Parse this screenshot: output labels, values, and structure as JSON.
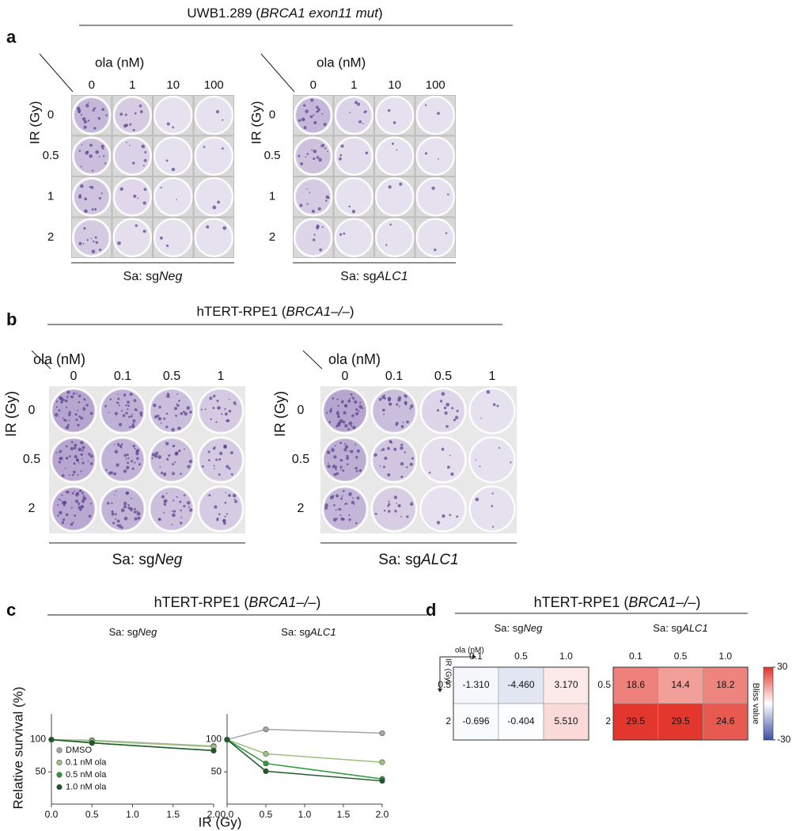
{
  "panels": [
    {
      "letter": "a",
      "title": [
        "UWB1.289 (",
        "BRCA1 exon11 mut",
        ")"
      ],
      "plates": [
        {
          "x_label": "ola (nM)",
          "y_label": "IR (Gy)",
          "columns": [
            "0",
            "1",
            "10",
            "100"
          ],
          "rows": [
            "0",
            "0.5",
            "1",
            "2"
          ],
          "caption": [
            "Sa: sg",
            "Neg"
          ]
        },
        {
          "x_label": "ola (nM)",
          "y_label": "IR (Gy)",
          "columns": [
            "0",
            "1",
            "10",
            "100"
          ],
          "rows": [
            "0",
            "0.5",
            "1",
            "2"
          ],
          "caption": [
            "Sa: sg",
            "ALC1"
          ]
        }
      ]
    },
    {
      "letter": "b",
      "title": [
        "hTERT-RPE1 (",
        "BRCA1–/–",
        ")"
      ],
      "plates": [
        {
          "x_label": "ola (nM)",
          "y_label": "IR (Gy)",
          "columns": [
            "0",
            "0.1",
            "0.5",
            "1"
          ],
          "rows": [
            "0",
            "0.5",
            "2"
          ],
          "caption": [
            "Sa: sg",
            "Neg"
          ]
        },
        {
          "x_label": "ola (nM)",
          "y_label": "IR (Gy)",
          "columns": [
            "0",
            "0.1",
            "0.5",
            "1"
          ],
          "rows": [
            "0",
            "0.5",
            "2"
          ],
          "caption": [
            "Sa: sg",
            "ALC1"
          ]
        }
      ]
    },
    {
      "letter": "c",
      "title": [
        "hTERT-RPE1 (",
        "BRCA1–/–",
        ")"
      ]
    },
    {
      "letter": "d",
      "title": [
        "hTERT-RPE1 (",
        "BRCA1–/–",
        ")"
      ]
    }
  ],
  "chart_data": [
    {
      "type": "line",
      "subtitle": [
        "Sa: sg",
        "Neg"
      ],
      "y_label": "Relative survival (%)",
      "x_label": "IR (Gy)",
      "x": [
        0,
        0.5,
        2
      ],
      "xlim": [
        0,
        2
      ],
      "xticks": [
        {
          "value": 0,
          "label": "0.0"
        },
        {
          "value": 0.5,
          "label": "0.5"
        },
        {
          "value": 1,
          "label": "1.0"
        },
        {
          "value": 1.5,
          "label": "1.5"
        },
        {
          "value": 2,
          "label": "2.0"
        }
      ],
      "ylim": [
        0,
        140
      ],
      "yticks": [
        50,
        100
      ],
      "legend": "lower left",
      "series": [
        {
          "name": "DMSO",
          "color": "#a6a6a6",
          "values": [
            100,
            99,
            90
          ]
        },
        {
          "name": "0.1 nM ola",
          "color": "#9cc27b",
          "values": [
            100,
            98,
            89
          ]
        },
        {
          "name": "0.5 nM ola",
          "color": "#2e9a3c",
          "values": [
            100,
            95,
            83
          ]
        },
        {
          "name": "1.0 nM ola",
          "color": "#1d5a28",
          "values": [
            100,
            95,
            83
          ]
        }
      ]
    },
    {
      "type": "line",
      "subtitle": [
        "Sa: sg",
        "ALC1"
      ],
      "x": [
        0,
        0.5,
        2
      ],
      "xlim": [
        0,
        2
      ],
      "xticks": [
        {
          "value": 0,
          "label": "0.0"
        },
        {
          "value": 0.5,
          "label": "0.5"
        },
        {
          "value": 1,
          "label": "1.0"
        },
        {
          "value": 1.5,
          "label": "1.5"
        },
        {
          "value": 2,
          "label": "2.0"
        }
      ],
      "ylim": [
        0,
        140
      ],
      "yticks": [
        50,
        100
      ],
      "series": [
        {
          "color": "#a6a6a6",
          "values": [
            100,
            116,
            110
          ]
        },
        {
          "color": "#9cc27b",
          "values": [
            100,
            78,
            65
          ]
        },
        {
          "color": "#2e9a3c",
          "values": [
            100,
            63,
            39
          ]
        },
        {
          "color": "#1d5a28",
          "values": [
            100,
            51,
            36
          ]
        }
      ]
    },
    {
      "type": "heatmap",
      "subtitle": [
        "Sa: sg",
        "Neg"
      ],
      "x_label": "ola (nM)",
      "y_label": "IR (Gy)",
      "columns": [
        "0.1",
        "0.5",
        "1.0"
      ],
      "rows": [
        "0.5",
        "2"
      ],
      "values": [
        [
          -1.31,
          -4.46,
          3.17
        ],
        [
          -0.696,
          -0.404,
          5.51
        ]
      ],
      "value_labels": [
        [
          "-1.310",
          "-4.460",
          "3.170"
        ],
        [
          "-0.696",
          "-0.404",
          "5.510"
        ]
      ],
      "zlim": [
        -30,
        30
      ],
      "colors": [
        "#3a4fa6",
        "#ffffff",
        "#e3342a"
      ]
    },
    {
      "type": "heatmap",
      "subtitle": [
        "Sa: sg",
        "ALC1"
      ],
      "columns": [
        "0.1",
        "0.5",
        "1.0"
      ],
      "rows": [
        "0.5",
        "2"
      ],
      "values": [
        [
          18.6,
          14.4,
          18.2
        ],
        [
          29.5,
          29.5,
          24.6
        ]
      ],
      "zlim": [
        -30,
        30
      ],
      "colors": [
        "#3a4fa6",
        "#ffffff",
        "#e3342a"
      ],
      "colorbar": {
        "label": "Bliss value",
        "ticks": [
          -30,
          30
        ]
      }
    }
  ]
}
